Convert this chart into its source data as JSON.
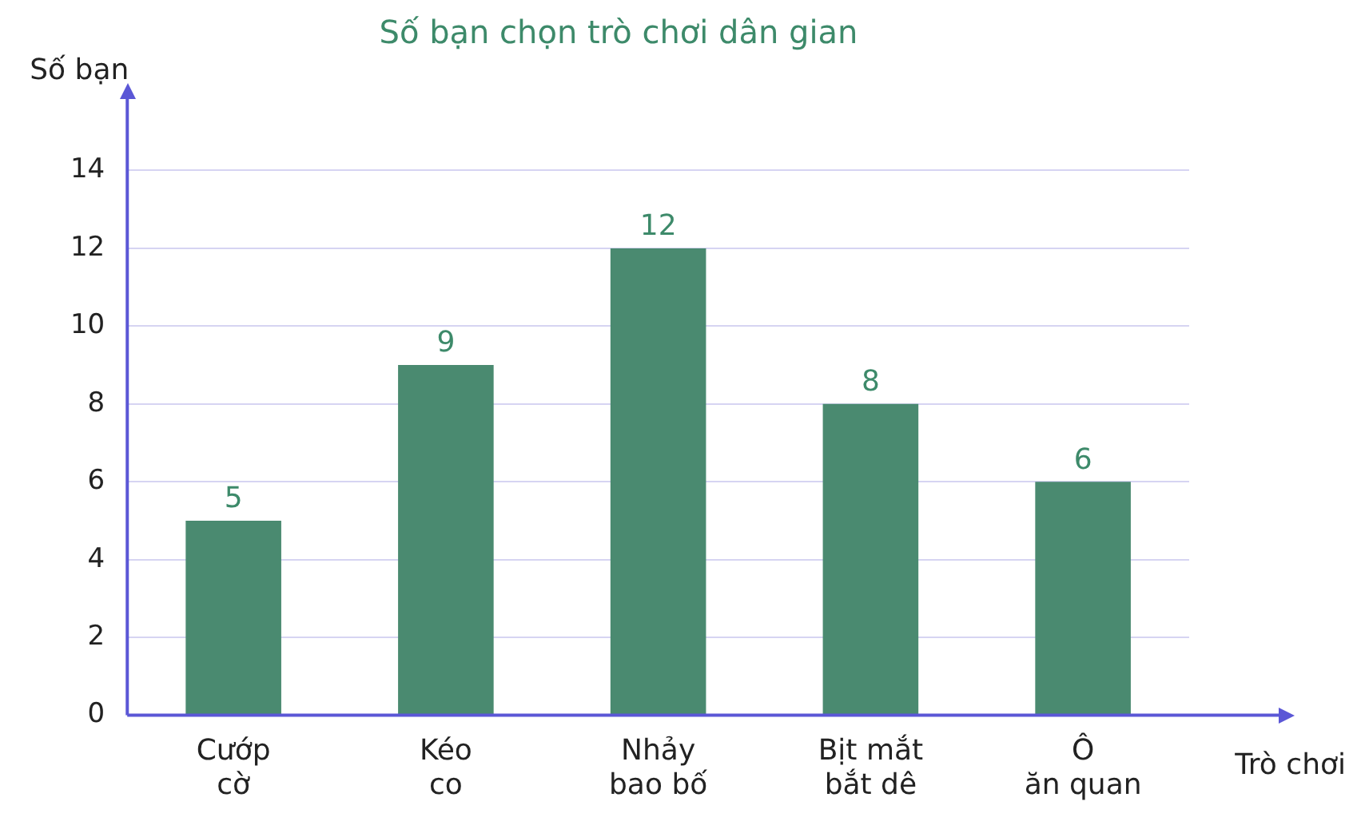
{
  "chart_data": {
    "type": "bar",
    "title": "Số bạn chọn trò chơi dân gian",
    "xlabel": "Trò chơi",
    "ylabel": "Số bạn",
    "categories": [
      "Cướp cờ",
      "Kéo co",
      "Nhảy bao bố",
      "Bịt mắt bắt dê",
      "Ô ăn quan"
    ],
    "values": [
      5,
      9,
      12,
      8,
      6
    ],
    "color": "#4a8a70",
    "ylim": [
      0,
      16
    ],
    "yticks": [
      0,
      2,
      4,
      6,
      8,
      10,
      12,
      14
    ],
    "grid": "y",
    "data_labels": true,
    "legend": false
  }
}
